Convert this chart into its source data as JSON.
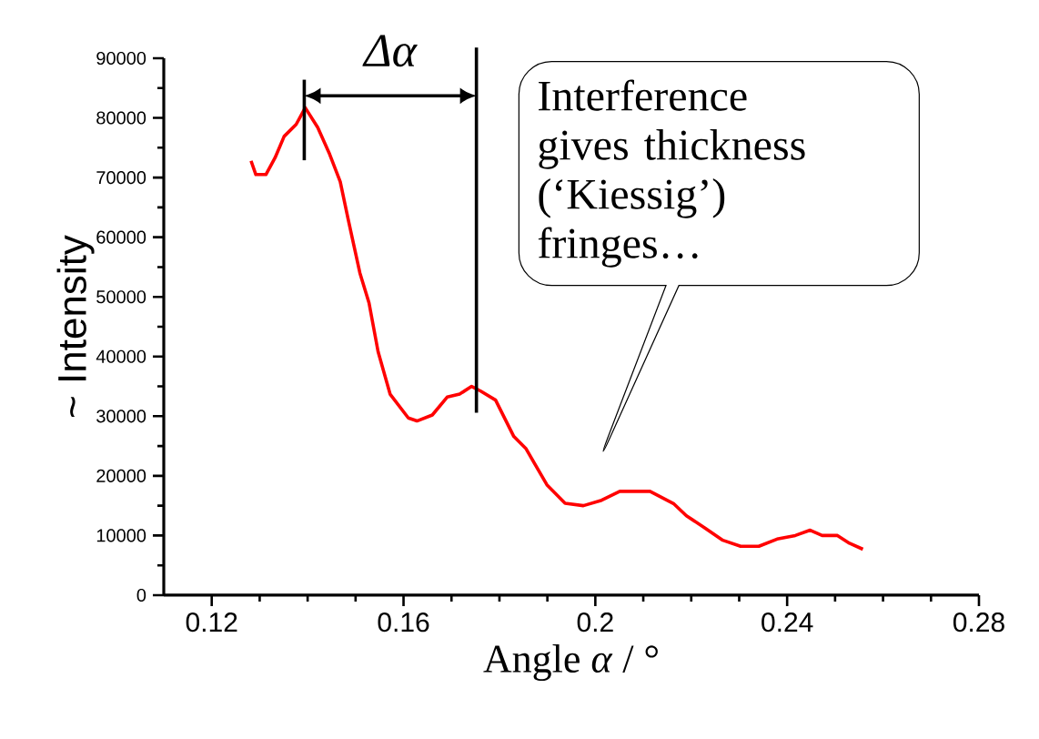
{
  "chart_data": {
    "type": "line",
    "xlabel": "Angle *α* / °",
    "ylabel": "~ Intensity",
    "xlim": [
      0.11,
      0.28
    ],
    "xticks": [
      0.12,
      0.16,
      0.2,
      0.24,
      0.28
    ],
    "ylim": [
      0,
      90000
    ],
    "yticks": [
      0,
      10000,
      20000,
      30000,
      40000,
      50000,
      60000,
      70000,
      80000,
      90000
    ],
    "marker": "none",
    "line_style": "solid",
    "series": [
      {
        "color": "#ff0000",
        "x": [
          0.1282,
          0.1292,
          0.1313,
          0.1332,
          0.1351,
          0.1376,
          0.1395,
          0.1421,
          0.1446,
          0.1468,
          0.1484,
          0.1509,
          0.1528,
          0.1547,
          0.1572,
          0.1591,
          0.161,
          0.1628,
          0.166,
          0.1691,
          0.1717,
          0.1742,
          0.1761,
          0.1792,
          0.183,
          0.1855,
          0.1899,
          0.1937,
          0.1975,
          0.2013,
          0.2051,
          0.2114,
          0.2164,
          0.219,
          0.2228,
          0.2266,
          0.2303,
          0.2341,
          0.2379,
          0.2417,
          0.2448,
          0.2473,
          0.2505,
          0.253,
          0.2558
        ],
        "values": [
          72800,
          70500,
          70500,
          73300,
          76900,
          78900,
          81700,
          78400,
          73900,
          69300,
          63200,
          54000,
          49000,
          40800,
          33700,
          31700,
          29700,
          29200,
          30200,
          33200,
          33700,
          35000,
          34200,
          32700,
          26600,
          24600,
          18500,
          15400,
          15000,
          15900,
          17400,
          17400,
          15300,
          13300,
          11300,
          9200,
          8200,
          8200,
          9400,
          10000,
          10900,
          10000,
          10000,
          8700,
          7700
        ]
      }
    ],
    "ref_lines": [
      {
        "axis": "x",
        "value": 0.1393,
        "color": "#000000"
      },
      {
        "axis": "x",
        "value": 0.1752,
        "color": "#000000"
      }
    ],
    "annotations": [
      "Δα",
      "Interference gives thickness (‘Kiessig’) fringes…"
    ]
  }
}
